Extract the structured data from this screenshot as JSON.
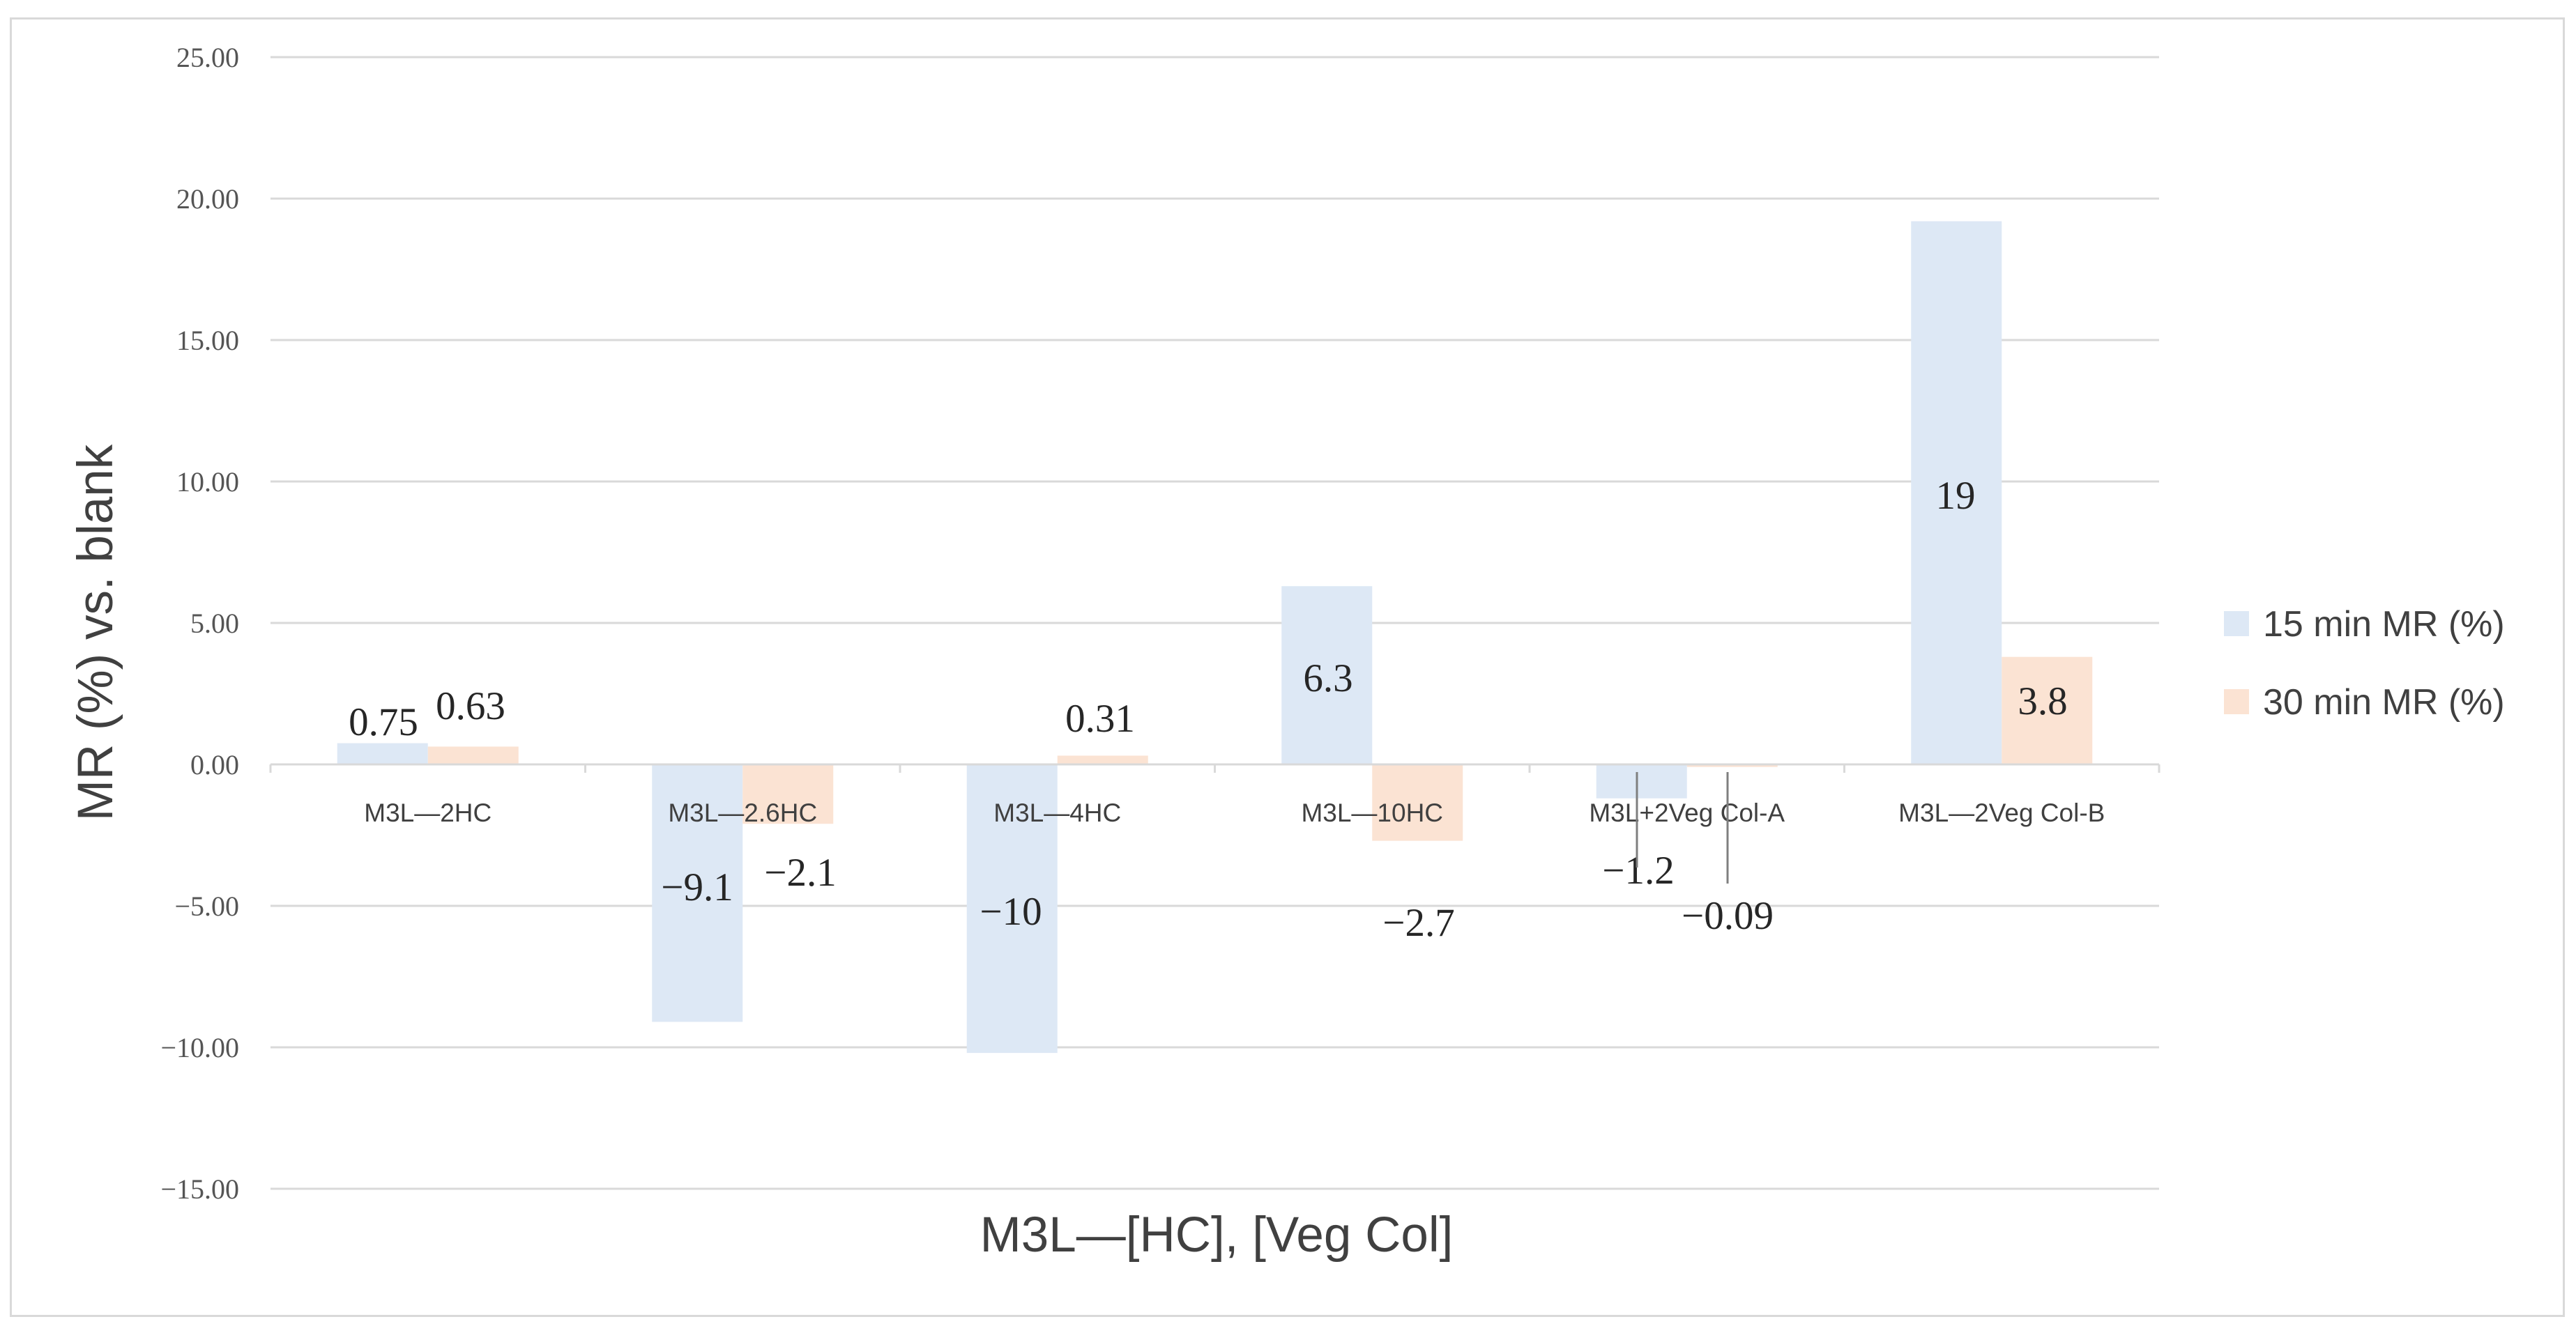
{
  "chart_data": {
    "type": "bar",
    "title": "",
    "xlabel": "M3L—[HC], [Veg Col]",
    "ylabel": "MR (%) vs. blank",
    "ylim": [
      -15,
      25
    ],
    "y_ticks": [
      "25.00",
      "20.00",
      "15.00",
      "10.00",
      "5.00",
      "0.00",
      "−5.00",
      "−10.00",
      "−15.00"
    ],
    "y_tick_values": [
      25,
      20,
      15,
      10,
      5,
      0,
      -5,
      -10,
      -15
    ],
    "grid": true,
    "legend_position": "right",
    "categories": [
      "M3L—2HC",
      "M3L—2.6HC",
      "M3L—4HC",
      "M3L—10HC",
      "M3L+2Veg Col-A",
      "M3L—2Veg Col-B"
    ],
    "series": [
      {
        "name": "15 min MR (%)",
        "color": "#dde8f5",
        "values": [
          0.75,
          -9.1,
          -10.2,
          6.3,
          -1.2,
          19.2
        ],
        "labels": [
          "0.75",
          "−9.1",
          "−10",
          "6.3",
          "−1.2",
          "19"
        ]
      },
      {
        "name": "30 min MR (%)",
        "color": "#fbe3d3",
        "values": [
          0.63,
          -2.1,
          0.31,
          -2.7,
          -0.09,
          3.8
        ],
        "labels": [
          "0.63",
          "−2.1",
          "0.31",
          "−2.7",
          "−0.09",
          "3.8"
        ]
      }
    ]
  }
}
